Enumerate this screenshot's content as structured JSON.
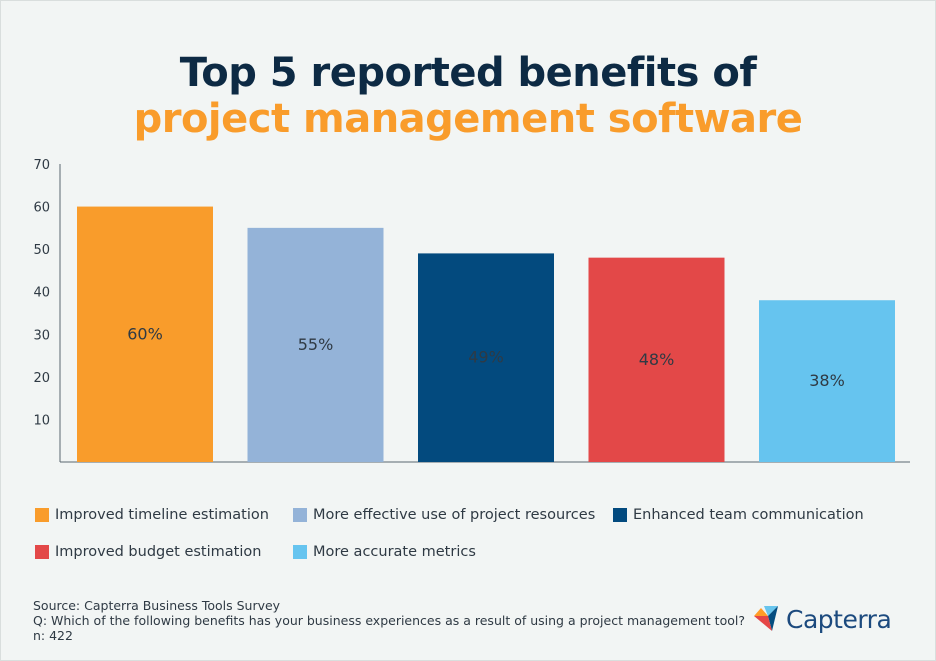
{
  "title_line1": "Top 5 reported benefits of",
  "title_line2": "project management software",
  "chart_data": {
    "type": "bar",
    "categories": [
      "Improved timeline estimation",
      "More effective use of project resources",
      "Enhanced team communication",
      "Improved budget estimation",
      "More accurate metrics"
    ],
    "values": [
      60,
      55,
      49,
      48,
      38
    ],
    "data_labels": [
      "60%",
      "55%",
      "49%",
      "48%",
      "38%"
    ],
    "colors": [
      "#f99c2b",
      "#94b3d8",
      "#034a7e",
      "#e34848",
      "#66c4ef"
    ],
    "ylim": [
      0,
      70
    ],
    "yticks": [
      10,
      20,
      30,
      40,
      50,
      60,
      70
    ],
    "legend_position": "bottom",
    "grid": false
  },
  "legend": [
    {
      "label": "Improved timeline estimation",
      "color": "#f99c2b"
    },
    {
      "label": "More effective use of project resources",
      "color": "#94b3d8"
    },
    {
      "label": "Enhanced team communication",
      "color": "#034a7e"
    },
    {
      "label": "Improved budget estimation",
      "color": "#e34848"
    },
    {
      "label": "More accurate metrics",
      "color": "#66c4ef"
    }
  ],
  "footer": {
    "source": "Source:  Capterra Business Tools Survey",
    "question": "Q: Which of the following benefits has your business experiences as a result of using a project management tool?",
    "n": "n: 422"
  },
  "logo": {
    "text": "Capterra",
    "icon": "capterra-logo-icon"
  }
}
